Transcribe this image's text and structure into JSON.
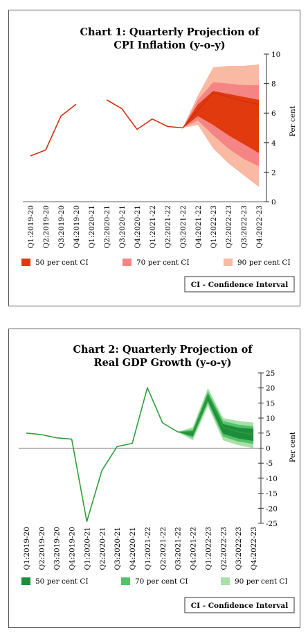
{
  "charts": {
    "cpi": {
      "title_line1": "Chart 1: Quarterly Projection of",
      "title_line2": "CPI Inflation (y-o-y)",
      "ylabel": "Per cent",
      "note": "CI - Confidence Interval"
    },
    "gdp": {
      "title_line1": "Chart 2: Quarterly Projection of",
      "title_line2": "Real GDP Growth (y-o-y)",
      "ylabel": "Per cent",
      "note": "CI - Confidence Interval"
    }
  },
  "chart_data": [
    {
      "type": "area",
      "title": "Chart 1: Quarterly Projection of CPI Inflation (y-o-y)",
      "ylabel": "Per cent",
      "categories": [
        "Q1:2019-20",
        "Q2:2019-20",
        "Q3:2019-20",
        "Q4:2019-20",
        "Q1:2020-21",
        "Q2:2020-21",
        "Q3:2020-21",
        "Q4:2020-21",
        "Q1:2021-22",
        "Q2:2021-22",
        "Q3:2021-22",
        "Q4:2021-22",
        "Q1:2022-23",
        "Q2:2022-23",
        "Q3:2022-23",
        "Q4:2022-23"
      ],
      "ylim": [
        0,
        10
      ],
      "yticks": [
        0,
        2,
        4,
        6,
        8,
        10
      ],
      "line_color": "#d03010",
      "series": [
        {
          "values": [
            3.1,
            3.5,
            5.8,
            6.6,
            null,
            6.9,
            6.3,
            4.9,
            5.6,
            5.1,
            5.0,
            6.2,
            7.4,
            7.1,
            6.8,
            6.6
          ]
        }
      ],
      "fan": {
        "start_index": 10,
        "bands": [
          {
            "name": "90 per cent CI",
            "color": "#f9b9a3",
            "lower": [
              5.0,
              5.2,
              3.6,
              2.6,
              1.8,
              1.0
            ],
            "upper": [
              5.0,
              7.2,
              9.1,
              9.2,
              9.2,
              9.3
            ]
          },
          {
            "name": "70 per cent CI",
            "color": "#f58585",
            "lower": [
              5.0,
              5.5,
              4.5,
              3.6,
              2.9,
              2.4
            ],
            "upper": [
              5.0,
              6.9,
              8.1,
              8.0,
              7.9,
              7.9
            ]
          },
          {
            "name": "50 per cent CI",
            "color": "#e03a0e",
            "lower": [
              5.0,
              5.8,
              5.2,
              4.5,
              3.9,
              3.3
            ],
            "upper": [
              5.0,
              6.6,
              7.5,
              7.3,
              7.1,
              6.9
            ]
          }
        ]
      },
      "legend": [
        {
          "label": "50 per cent CI",
          "color": "#e03a0e"
        },
        {
          "label": "70 per cent CI",
          "color": "#f58585"
        },
        {
          "label": "90 per cent CI",
          "color": "#f9b9a3"
        }
      ]
    },
    {
      "type": "area",
      "title": "Chart 2: Quarterly Projection of Real GDP Growth (y-o-y)",
      "ylabel": "Per cent",
      "categories": [
        "Q1:2019-20",
        "Q2:2019-20",
        "Q3:2019-20",
        "Q4:2019-20",
        "Q1:2020-21",
        "Q2:2020-21",
        "Q3:2020-21",
        "Q4:2020-21",
        "Q1:2021-22",
        "Q2:2021-22",
        "Q3:2021-22",
        "Q4:2021-22",
        "Q1:2022-23",
        "Q2:2022-23",
        "Q3:2022-23",
        "Q4:2022-23"
      ],
      "ylim": [
        -25,
        25
      ],
      "yticks": [
        -25,
        -20,
        -15,
        -10,
        -5,
        0,
        5,
        10,
        15,
        20,
        25
      ],
      "line_color": "#2e9e3a",
      "series": [
        {
          "values": [
            5.0,
            4.5,
            3.4,
            3.0,
            -24.4,
            -7.4,
            0.5,
            1.6,
            20.1,
            8.4,
            5.4,
            4.9,
            17.2,
            7.0,
            5.4,
            4.5
          ]
        }
      ],
      "fan": {
        "start_index": 10,
        "bands": [
          {
            "name": "90 per cent CI",
            "color": "#a8e0a8",
            "lower": [
              5.4,
              2.6,
              14.0,
              2.6,
              1.0,
              0.0
            ],
            "upper": [
              5.4,
              7.0,
              20.0,
              10.0,
              9.0,
              8.5
            ]
          },
          {
            "name": "70 per cent CI",
            "color": "#52c26a",
            "lower": [
              5.4,
              3.4,
              15.0,
              3.8,
              2.2,
              1.4
            ],
            "upper": [
              5.4,
              6.2,
              18.8,
              9.0,
              7.8,
              7.2
            ]
          },
          {
            "name": "50 per cent CI",
            "color": "#1f8c3c",
            "lower": [
              5.4,
              4.0,
              15.8,
              4.8,
              3.2,
              2.4
            ],
            "upper": [
              5.4,
              5.6,
              18.0,
              8.0,
              6.8,
              6.4
            ]
          }
        ]
      },
      "legend": [
        {
          "label": "50 per cent CI",
          "color": "#1f8c3c"
        },
        {
          "label": "70 per cent CI",
          "color": "#52c26a"
        },
        {
          "label": "90 per cent CI",
          "color": "#a8e0a8"
        }
      ]
    }
  ]
}
